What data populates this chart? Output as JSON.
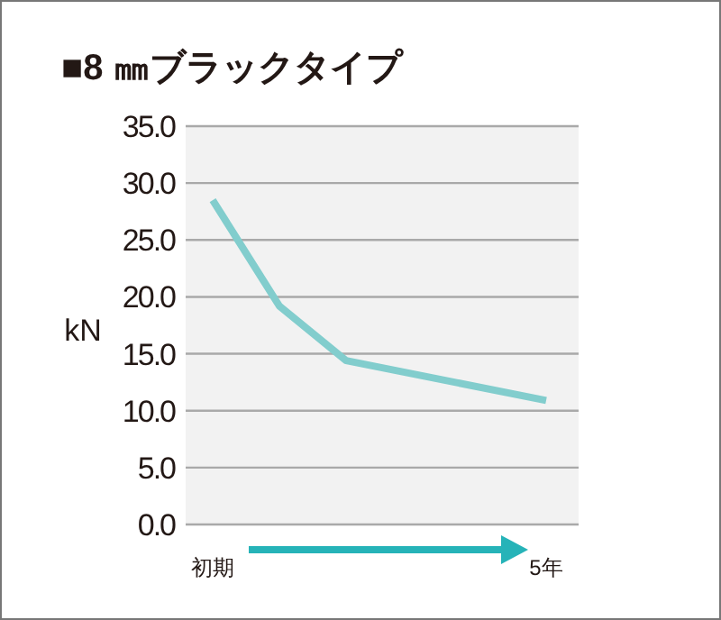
{
  "chart_data": {
    "type": "line",
    "title": "■8 ㎜ブラックタイプ",
    "ylabel": "kN",
    "categories": [
      "初期",
      null,
      null,
      null,
      null,
      "5年"
    ],
    "series": [
      {
        "color": "#82cdcd",
        "values": [
          28.5,
          19.2,
          14.4,
          null,
          null,
          10.9
        ]
      }
    ],
    "ylim": [
      0,
      35
    ],
    "yticks": [
      {
        "value": 0,
        "label": "0.0"
      },
      {
        "value": 5,
        "label": "5.0"
      },
      {
        "value": 10,
        "label": "10.0"
      },
      {
        "value": 15,
        "label": "15.0"
      },
      {
        "value": 20,
        "label": "20.0"
      },
      {
        "value": 25,
        "label": "25.0"
      },
      {
        "value": 30,
        "label": "30.0"
      },
      {
        "value": 35,
        "label": "35.0"
      }
    ],
    "grid": "y"
  }
}
